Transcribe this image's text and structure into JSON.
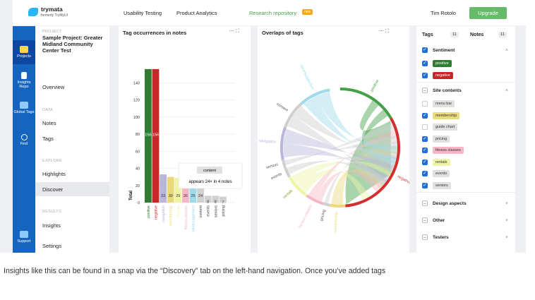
{
  "top_bar": {
    "brand": "trymata",
    "brand_sub": "formerly TryMyUI",
    "nav": [
      "Usability Testing",
      "Product Analytics",
      "Research repository"
    ],
    "badge": "new",
    "user": "Tim Rotolo",
    "upgrade": "Upgrade"
  },
  "sidebar": [
    "Projects",
    "Insights Repo",
    "Global Tags",
    "Find",
    "Support"
  ],
  "project_nav": {
    "project_label": "PROJECT",
    "project_name": "Sample Project: Greater Midland Community Center Test",
    "overview": "Overview",
    "data_label": "DATA",
    "notes": "Notes",
    "tags": "Tags",
    "explore_label": "EXPLORE",
    "highlights": "Highlights",
    "discover": "Discover",
    "results_label": "RESULTS",
    "insights": "Insights",
    "settings": "Settings"
  },
  "bar_chart": {
    "type": "bar",
    "title": "Tag occurrences in notes",
    "y_label": "Total",
    "categories": [
      "positive",
      "negative",
      "navigation",
      "membership",
      "rentals",
      "fitness classes",
      "idea/suggestion",
      "content",
      "events",
      "seniors",
      "pricing"
    ],
    "values": [
      156,
      156,
      33,
      30,
      29,
      26,
      25,
      24,
      8,
      8,
      7
    ],
    "colors": [
      "#2e7d32",
      "#c62828",
      "#b9b6dc",
      "#e9d97c",
      "#eef3a6",
      "#f5b7c6",
      "#9fd9ea",
      "#d0d0d0",
      "#d0d0d0",
      "#d0d0d0",
      "#d0d0d0"
    ],
    "ylim": [
      0,
      160
    ],
    "yticks": [
      0,
      20,
      40,
      60,
      80,
      100,
      120,
      140
    ],
    "grid": true,
    "tooltip": {
      "title": "content",
      "text": "appears 24× in 4 notes"
    }
  },
  "chord_chart": {
    "title": "Overlaps of tags",
    "labels": [
      "positive",
      "negative",
      "membership",
      "pricing",
      "fitness classes",
      "rentals",
      "events",
      "seniors",
      "navigation",
      "content",
      "idea/suggestion"
    ]
  },
  "tags_panel": {
    "tabs": [
      {
        "name": "Tags",
        "count": 11
      },
      {
        "name": "Notes",
        "count": 11
      }
    ],
    "groups": [
      {
        "name": "Sentiment",
        "state": "checked",
        "tags": [
          {
            "name": "positive",
            "checked": true,
            "color": "#2e7d32",
            "text_color": "#fff"
          },
          {
            "name": "negative",
            "checked": true,
            "color": "#c62828",
            "text_color": "#fff"
          }
        ]
      },
      {
        "name": "Site contents",
        "state": "partial",
        "tags": [
          {
            "name": "menu bar",
            "checked": false,
            "color": "#e0e0e0",
            "text_color": "#333"
          },
          {
            "name": "membership",
            "checked": true,
            "color": "#eadb7f",
            "text_color": "#333"
          },
          {
            "name": "guide chart",
            "checked": false,
            "color": "#e0e0e0",
            "text_color": "#333"
          },
          {
            "name": "pricing",
            "checked": true,
            "color": "#e0e0e0",
            "text_color": "#333"
          },
          {
            "name": "fitness classes",
            "checked": true,
            "color": "#f5b7c6",
            "text_color": "#333"
          },
          {
            "name": "rentals",
            "checked": true,
            "color": "#eef3a6",
            "text_color": "#333"
          },
          {
            "name": "events",
            "checked": true,
            "color": "#e0e0e0",
            "text_color": "#333"
          },
          {
            "name": "seniors",
            "checked": true,
            "color": "#e0e0e0",
            "text_color": "#333"
          }
        ]
      }
    ],
    "collapsed": [
      "Design aspects",
      "Other",
      "Testers"
    ]
  },
  "caption": "Insights like this can be found in a snap via the “Discovery” tab on the left-hand navigation. Once you’ve added tags"
}
